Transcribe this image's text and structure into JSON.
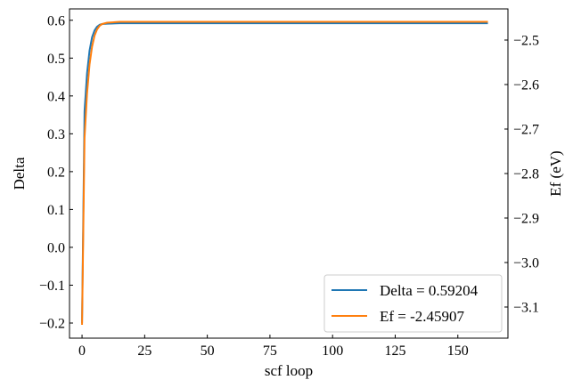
{
  "chart_data": {
    "type": "line",
    "x_axis": {
      "label": "scf loop",
      "lim": [
        -5,
        170
      ],
      "ticks": [
        0,
        25,
        50,
        75,
        100,
        125,
        150
      ]
    },
    "y_left": {
      "label": "Delta",
      "lim": [
        -0.24,
        0.63
      ],
      "ticks": [
        -0.2,
        -0.1,
        0.0,
        0.1,
        0.2,
        0.3,
        0.4,
        0.5,
        0.6
      ],
      "tick_labels": [
        "−0.2",
        "−0.1",
        "0.0",
        "0.1",
        "0.2",
        "0.3",
        "0.4",
        "0.5",
        "0.6"
      ]
    },
    "y_right": {
      "label": "Ef (eV)",
      "lim": [
        -3.17,
        -2.43
      ],
      "ticks": [
        -3.1,
        -3.0,
        -2.9,
        -2.8,
        -2.7,
        -2.6,
        -2.5
      ],
      "tick_labels": [
        "−3.1",
        "−3.0",
        "−2.9",
        "−2.8",
        "−2.7",
        "−2.6",
        "−2.5"
      ]
    },
    "series": [
      {
        "name": "Delta = 0.59204",
        "color": "#1f77b4",
        "axis": "left",
        "x": [
          0,
          1,
          2,
          3,
          4,
          5,
          6,
          7,
          8,
          10,
          15,
          20,
          40,
          60,
          80,
          100,
          120,
          140,
          162
        ],
        "y": [
          -0.2,
          0.36,
          0.46,
          0.52,
          0.555,
          0.573,
          0.583,
          0.588,
          0.59,
          0.591,
          0.592,
          0.592,
          0.592,
          0.592,
          0.592,
          0.592,
          0.592,
          0.592,
          0.592
        ]
      },
      {
        "name": "Ef = -2.45907",
        "color": "#ff7f0e",
        "axis": "right",
        "x": [
          0,
          1,
          2,
          3,
          4,
          5,
          6,
          7,
          8,
          10,
          15,
          20,
          40,
          60,
          80,
          100,
          120,
          140,
          162
        ],
        "y": [
          -3.14,
          -2.72,
          -2.62,
          -2.555,
          -2.515,
          -2.49,
          -2.476,
          -2.468,
          -2.464,
          -2.461,
          -2.459,
          -2.459,
          -2.459,
          -2.459,
          -2.459,
          -2.459,
          -2.459,
          -2.459,
          -2.459
        ]
      }
    ],
    "legend": {
      "position": "lower-right"
    },
    "grid": false
  }
}
